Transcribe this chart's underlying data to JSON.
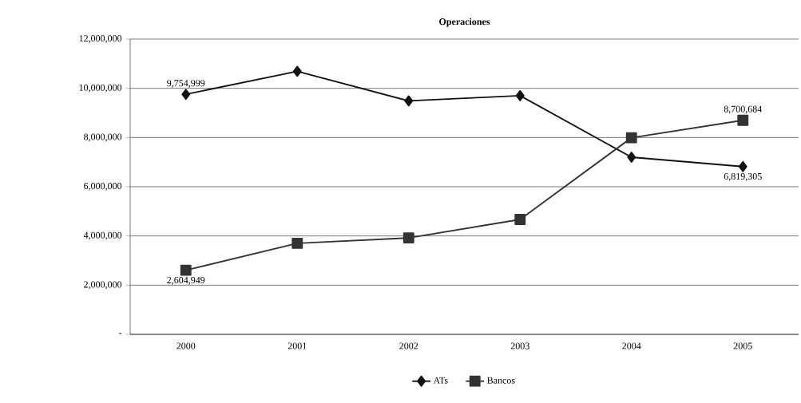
{
  "chart_data": {
    "type": "line",
    "title": "Operaciones",
    "categories": [
      "2000",
      "2001",
      "2002",
      "2003",
      "2004",
      "2005"
    ],
    "series": [
      {
        "name": "ATs",
        "color": "#111111",
        "marker": "diamond",
        "values": [
          9754999,
          10690000,
          9490000,
          9700000,
          7200000,
          6819305
        ],
        "value_labels": [
          "9,754,999",
          null,
          null,
          null,
          null,
          "6,819,305"
        ]
      },
      {
        "name": "Bancos",
        "color": "#333333",
        "marker": "square",
        "values": [
          2604949,
          3700000,
          3920000,
          4670000,
          7990000,
          8700684
        ],
        "value_labels": [
          "2,604,949",
          null,
          null,
          null,
          null,
          "8,700,684"
        ]
      }
    ],
    "ylim": [
      0,
      12000000
    ],
    "yticks": [
      {
        "value": 0,
        "label": "-"
      },
      {
        "value": 2000000,
        "label": "2,000,000"
      },
      {
        "value": 4000000,
        "label": "4,000,000"
      },
      {
        "value": 6000000,
        "label": "6,000,000"
      },
      {
        "value": 8000000,
        "label": "8,000,000"
      },
      {
        "value": 10000000,
        "label": "10,000,000"
      },
      {
        "value": 12000000,
        "label": "12,000,000"
      }
    ],
    "grid": "y",
    "legend": "bottom",
    "line_style": "solid"
  }
}
